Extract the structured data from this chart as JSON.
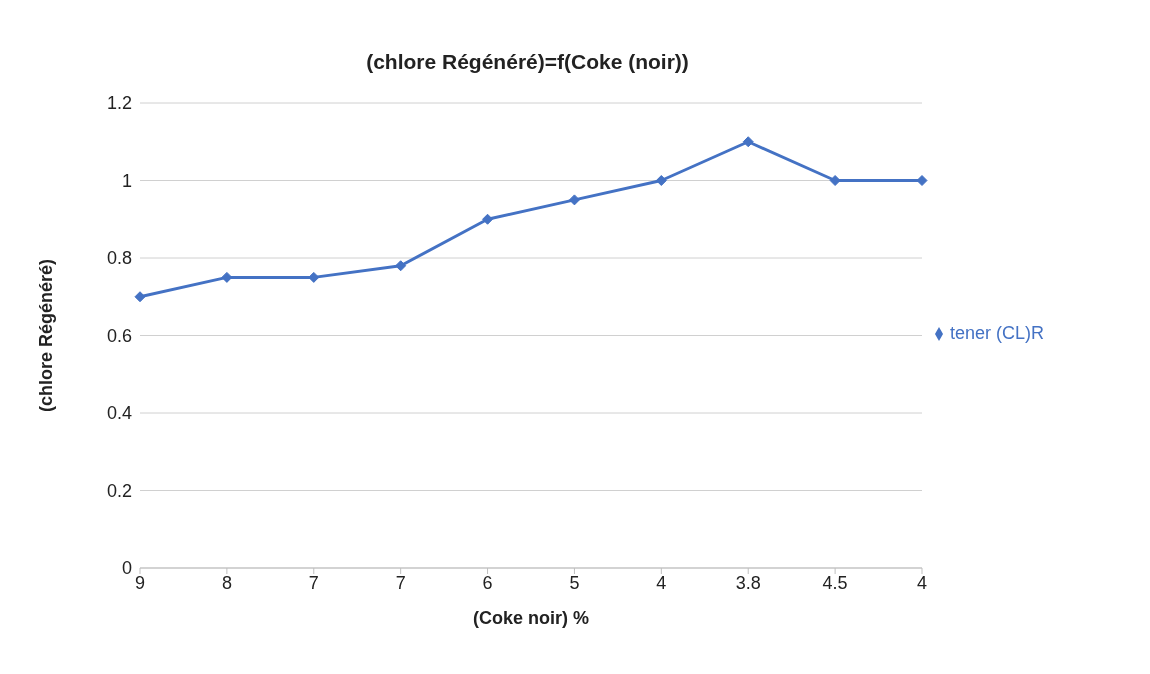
{
  "chart_data": {
    "type": "line",
    "title": "(chlore Régénéré)=f(Coke (noir))",
    "xlabel": "(Coke noir) %",
    "ylabel": "(chlore Régénéré)",
    "categories": [
      "9",
      "8",
      "7",
      "7",
      "6",
      "5",
      "4",
      "3.8",
      "4.5",
      "4"
    ],
    "series": [
      {
        "name": "tener (CL)R",
        "color": "#4472c4",
        "values": [
          0.7,
          0.75,
          0.75,
          0.78,
          0.9,
          0.95,
          1.0,
          1.1,
          1.0,
          1.0
        ]
      }
    ],
    "ylim": [
      0,
      1.2
    ],
    "yticks": [
      0,
      0.2,
      0.4,
      0.6,
      0.8,
      1,
      1.2
    ],
    "grid": "y",
    "legend": "right",
    "marker": "diamond",
    "line_style": "solid"
  }
}
